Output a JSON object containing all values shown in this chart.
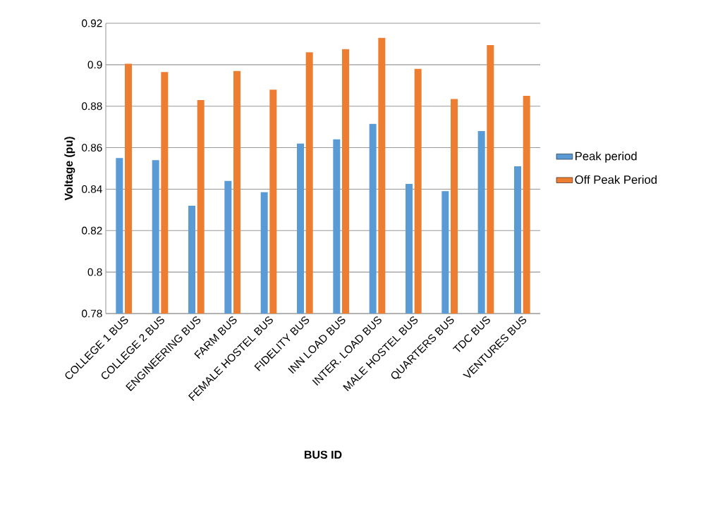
{
  "chart_data": {
    "type": "bar",
    "xlabel": "BUS ID",
    "ylabel": "Voltage (pu)",
    "categories": [
      "COLLEGE 1 BUS",
      "COLLEGE 2 BUS",
      "ENGINEERING BUS",
      "FARM BUS",
      "FEMALE HOSTEL BUS",
      "FIDELITY BUS",
      "INN LOAD BUS",
      "INTER. LOAD BUS",
      "MALE HOSTEL BUS",
      "QUARTERS BUS",
      "TDC BUS",
      "VENTURES BUS"
    ],
    "series": [
      {
        "name": "Peak period",
        "color": "#5b9bd5",
        "values": [
          0.855,
          0.854,
          0.832,
          0.844,
          0.8385,
          0.862,
          0.864,
          0.8715,
          0.8425,
          0.839,
          0.868,
          0.851
        ]
      },
      {
        "name": "Off Peak Period",
        "color": "#ed7d31",
        "values": [
          0.9005,
          0.8965,
          0.883,
          0.897,
          0.888,
          0.906,
          0.9075,
          0.913,
          0.898,
          0.8835,
          0.9095,
          0.885
        ]
      }
    ],
    "ylim": [
      0.78,
      0.92
    ],
    "yticks": [
      0.78,
      0.8,
      0.82,
      0.84,
      0.86,
      0.88,
      0.9,
      0.92
    ],
    "grid": "y",
    "legend": "right"
  }
}
